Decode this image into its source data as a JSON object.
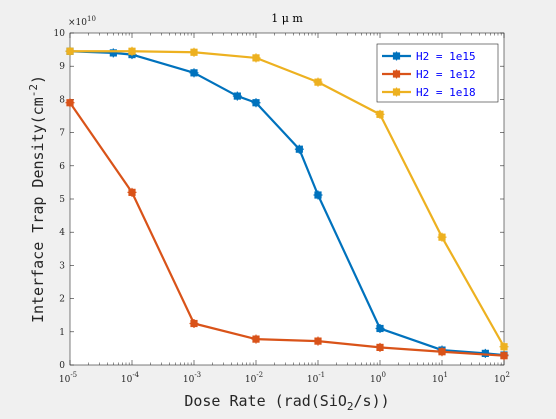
{
  "chart_data": {
    "type": "line",
    "title": "1 μ m",
    "xlabel_main": "Dose Rate (rad(SiO",
    "xlabel_sub": "2",
    "xlabel_tail": "/s))",
    "ylabel_main": "Interface Trap Density(cm",
    "ylabel_sup": "-2",
    "ylabel_tail": ")",
    "y_exponent_label": "×10",
    "y_exponent": "10",
    "xscale": "log",
    "xlim": [
      1e-05,
      100
    ],
    "ylim": [
      0,
      10
    ],
    "x_ticks": [
      {
        "base": "10",
        "exp": "-5",
        "value": 1e-05
      },
      {
        "base": "10",
        "exp": "-4",
        "value": 0.0001
      },
      {
        "base": "10",
        "exp": "-3",
        "value": 0.001
      },
      {
        "base": "10",
        "exp": "-2",
        "value": 0.01
      },
      {
        "base": "10",
        "exp": "-1",
        "value": 0.1
      },
      {
        "base": "10",
        "exp": "0",
        "value": 1
      },
      {
        "base": "10",
        "exp": "1",
        "value": 10
      },
      {
        "base": "10",
        "exp": "2",
        "value": 100
      }
    ],
    "y_ticks": [
      "0",
      "1",
      "2",
      "3",
      "4",
      "5",
      "6",
      "7",
      "8",
      "9",
      "10"
    ],
    "grid": false,
    "legend_position": "top-right",
    "series": [
      {
        "name": "H2 = 1e15",
        "color": "#0072bd",
        "x": [
          1e-05,
          5e-05,
          0.0001,
          0.001,
          0.005,
          0.01,
          0.05,
          0.1,
          1,
          10,
          50,
          100
        ],
        "y": [
          9.45,
          9.4,
          9.35,
          8.8,
          8.1,
          7.9,
          6.5,
          5.12,
          1.1,
          0.45,
          0.35,
          0.3
        ]
      },
      {
        "name": "H2 = 1e12",
        "color": "#d95319",
        "x": [
          1e-05,
          0.0001,
          0.001,
          0.01,
          0.1,
          1,
          10,
          100
        ],
        "y": [
          7.9,
          5.2,
          1.25,
          0.78,
          0.72,
          0.53,
          0.4,
          0.28
        ]
      },
      {
        "name": "H2 = 1e18",
        "color": "#edb120",
        "x": [
          1e-05,
          0.0001,
          0.001,
          0.01,
          0.1,
          1,
          10,
          100
        ],
        "y": [
          9.45,
          9.45,
          9.42,
          9.25,
          8.52,
          7.55,
          3.85,
          0.55
        ]
      }
    ]
  }
}
